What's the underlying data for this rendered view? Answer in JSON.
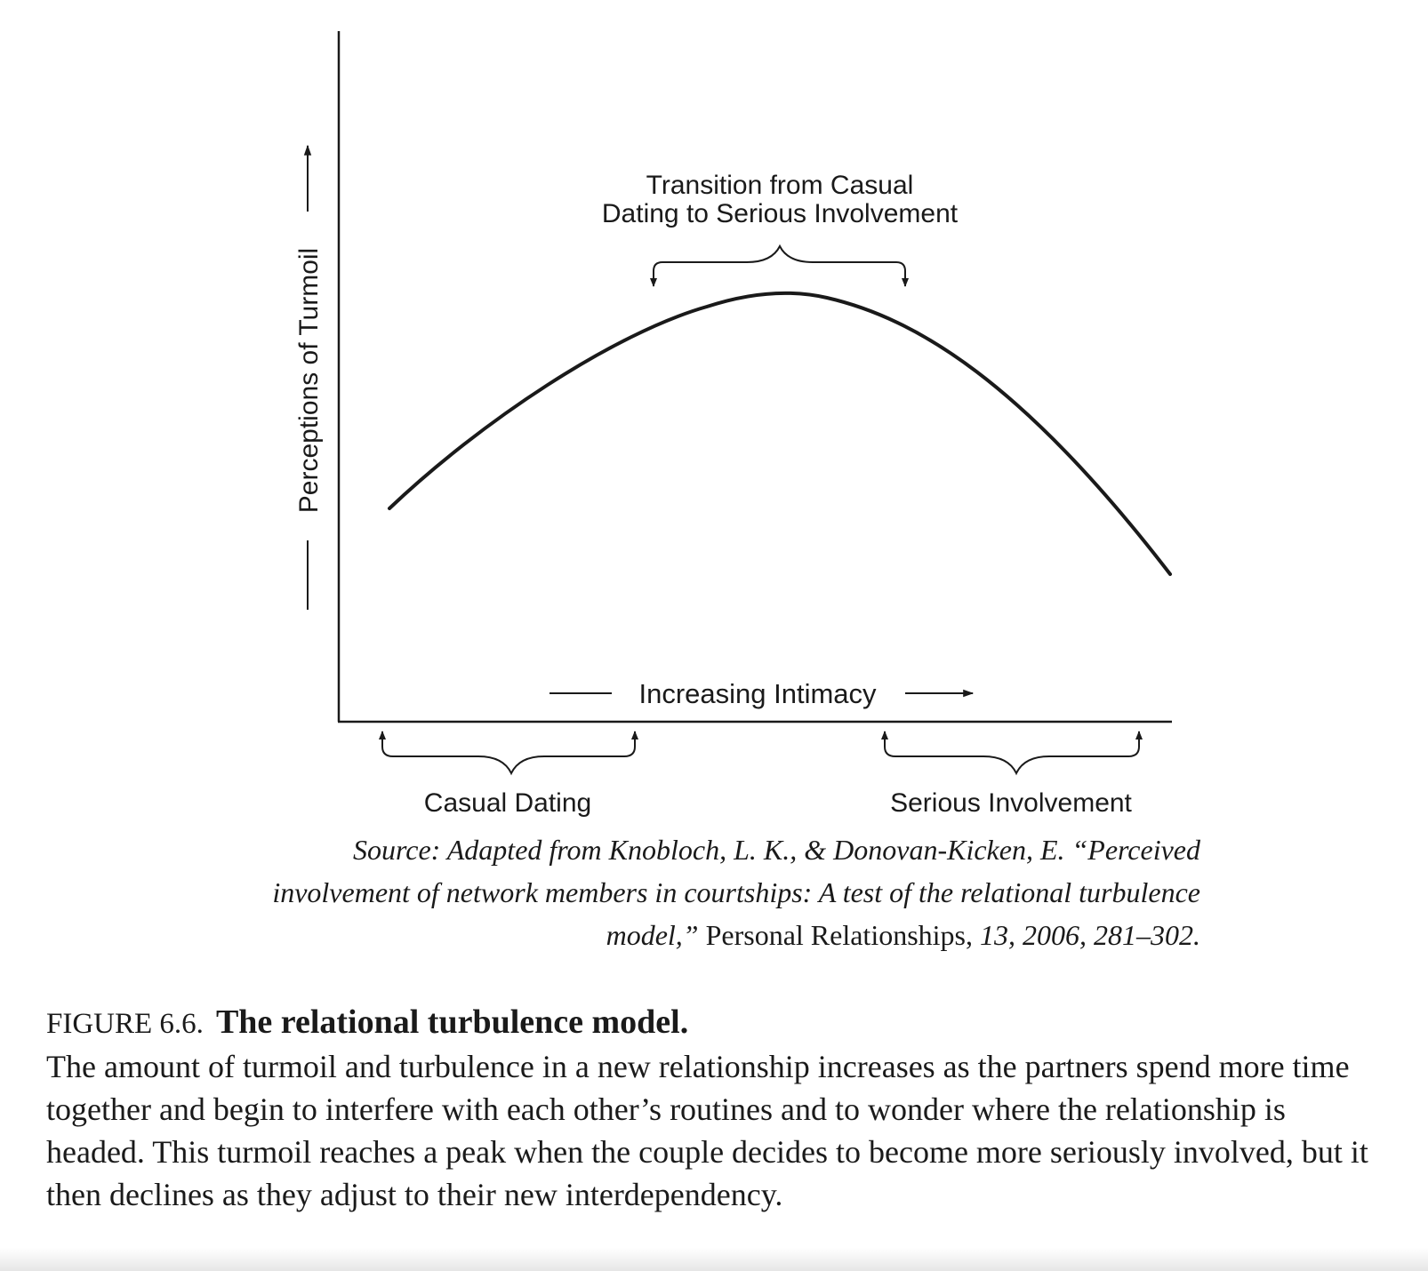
{
  "diagram": {
    "y_axis_label": "Perceptions of Turmoil",
    "x_axis_label": "Increasing Intimacy",
    "top_annotation": [
      "Transition from Casual",
      "Dating to Serious Involvement"
    ],
    "phase_left": "Casual Dating",
    "phase_right": "Serious Involvement"
  },
  "source": {
    "prefix": "Source: Adapted from Knobloch, L. K., & Donovan-Kicken, E. “Perceived involvement of network members in courtships: A test of the relational turbulence model,”",
    "journal": "Personal Relationships,",
    "suffix": "13, 2006, 281–302."
  },
  "caption": {
    "label": "FIGURE 6.6.",
    "title": "The relational turbulence model.",
    "body": "The amount of turmoil and turbulence in a new relationship increases as the partners spend more time together and begin to interfere with each other’s routines and to wonder where the relationship is headed. This turmoil reaches a peak when the couple decides to become more seriously involved, but it then declines as they adjust to their new interdependency."
  }
}
